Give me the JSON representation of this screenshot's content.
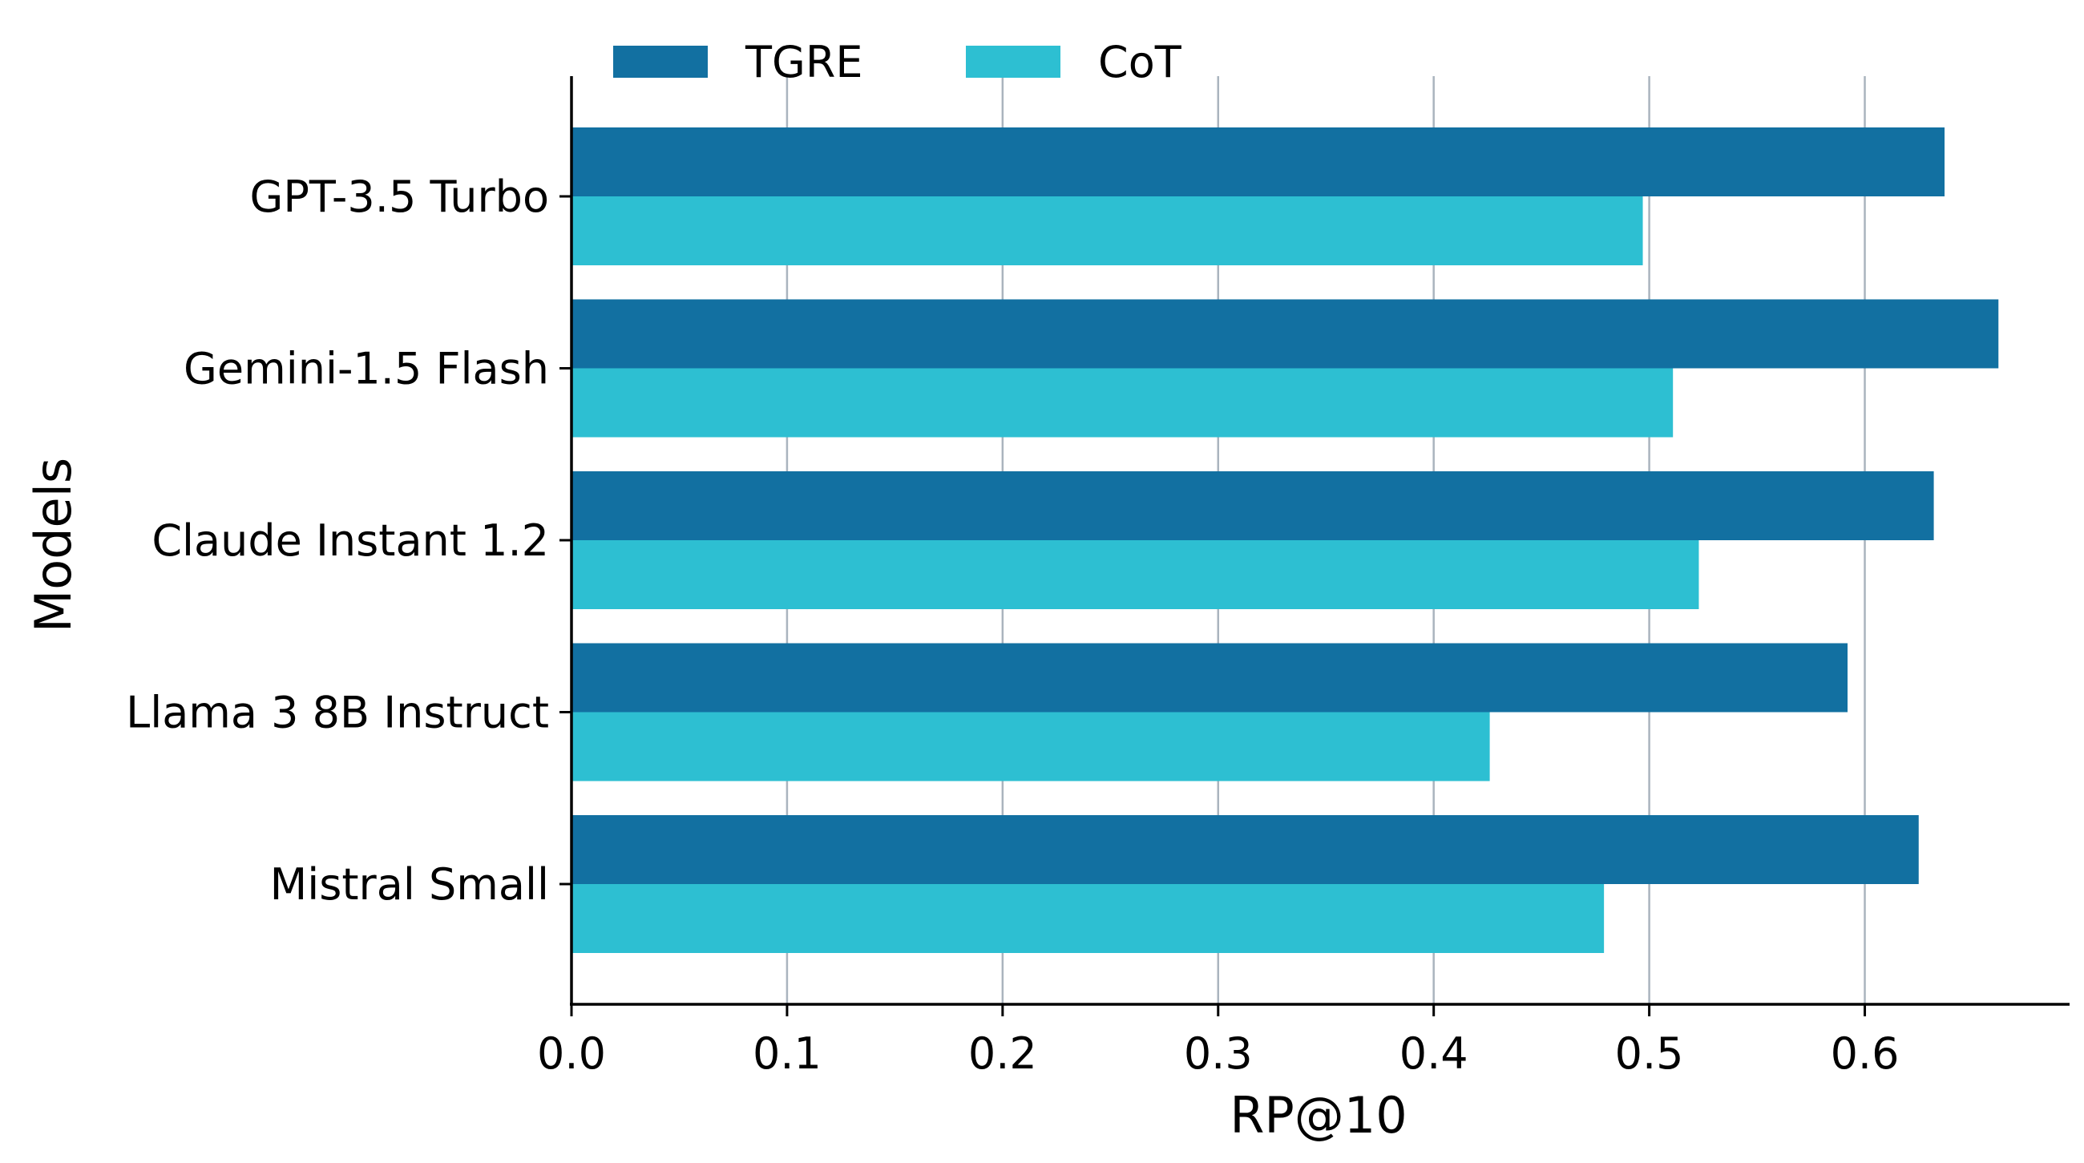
{
  "chart_data": {
    "type": "bar",
    "orientation": "horizontal",
    "title": "",
    "xlabel": "RP@10",
    "ylabel": "Models",
    "xlim": [
      0.0,
      0.695
    ],
    "xticks": [
      0.0,
      0.1,
      0.2,
      0.3,
      0.4,
      0.5,
      0.6
    ],
    "xtick_labels": [
      "0.0",
      "0.1",
      "0.2",
      "0.3",
      "0.4",
      "0.5",
      "0.6"
    ],
    "grid": "vertical",
    "legend": "top-left",
    "categories": [
      "GPT-3.5 Turbo",
      "Gemini-1.5 Flash",
      "Claude Instant 1.2",
      "Llama 3 8B Instruct",
      "Mistral Small"
    ],
    "series": [
      {
        "name": "TGRE",
        "color": "#1270a1",
        "values": [
          0.637,
          0.662,
          0.632,
          0.592,
          0.625
        ]
      },
      {
        "name": "CoT",
        "color": "#2dbfd2",
        "values": [
          0.497,
          0.511,
          0.523,
          0.426,
          0.479
        ]
      }
    ]
  }
}
